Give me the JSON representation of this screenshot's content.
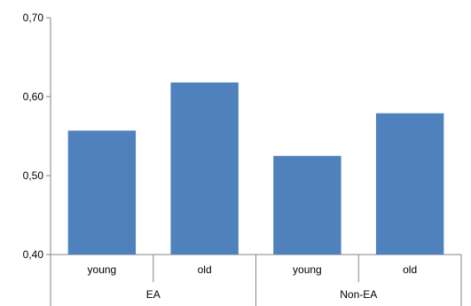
{
  "chart_data": {
    "type": "bar",
    "groups": [
      {
        "label": "EA",
        "categories": [
          "young",
          "old"
        ]
      },
      {
        "label": "Non-EA",
        "categories": [
          "young",
          "old"
        ]
      }
    ],
    "categories": [
      "young",
      "old",
      "young",
      "old"
    ],
    "values": [
      0.557,
      0.618,
      0.525,
      0.579
    ],
    "ylim": [
      0.4,
      0.7
    ],
    "y_ticks": [
      "0,40",
      "0,50",
      "0,60",
      "0,70"
    ],
    "y_tick_values": [
      0.4,
      0.5,
      0.6,
      0.7
    ],
    "grid": false,
    "legend": "none",
    "colors": {
      "bar": "#4F81BD",
      "axis": "#868686"
    }
  }
}
